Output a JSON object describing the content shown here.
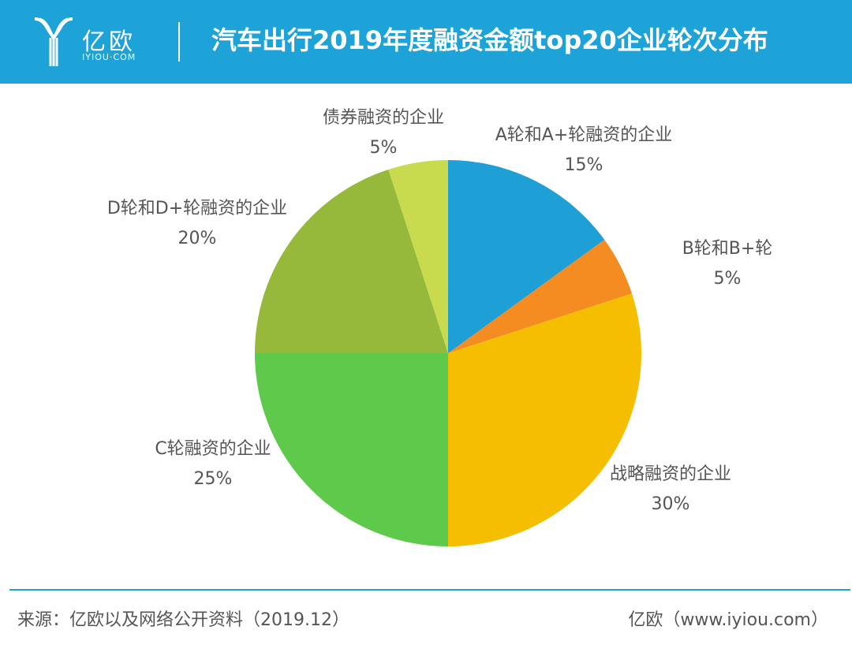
{
  "header": {
    "logo_cn": "亿欧",
    "logo_en": "IYIOU·COM",
    "title": "汽车出行2019年度融资金额top20企业轮次分布"
  },
  "chart_data": {
    "type": "pie",
    "title": "汽车出行2019年度融资金额top20企业轮次分布",
    "slices": [
      {
        "label": "A轮和A+轮融资的企业",
        "value": 15,
        "value_label": "15%",
        "color": "#1e9fd6"
      },
      {
        "label": "B轮和B+轮",
        "value": 5,
        "value_label": "5%",
        "color": "#f48c22"
      },
      {
        "label": "战略融资的企业",
        "value": 30,
        "value_label": "30%",
        "color": "#f5be00"
      },
      {
        "label": "C轮融资的企业",
        "value": 25,
        "value_label": "25%",
        "color": "#5ec94b"
      },
      {
        "label": "D轮和D+轮融资的企业",
        "value": 20,
        "value_label": "20%",
        "color": "#96b93b"
      },
      {
        "label": "债券融资的企业",
        "value": 5,
        "value_label": "5%",
        "color": "#c8da4e"
      }
    ]
  },
  "footer": {
    "source": "来源：亿欧以及网络公开资料（2019.12）",
    "brand": "亿欧（www.iyiou.com）"
  }
}
